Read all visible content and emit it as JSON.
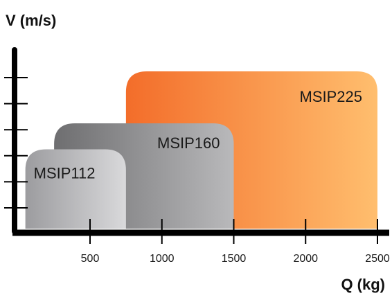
{
  "chart_data": {
    "type": "area",
    "xlabel": "Q (kg)",
    "ylabel": "V (m/s)",
    "x_ticks": [
      500,
      1000,
      1500,
      2000,
      2500
    ],
    "x_tick_labels": [
      "500",
      "1000",
      "1500",
      "2000",
      "2500"
    ],
    "y_tick_count": 6,
    "y_tick_labels": [],
    "grid": false,
    "legend": "none",
    "series": [
      {
        "name": "MSIP225",
        "x_range": [
          750,
          2500
        ],
        "y_level": 6,
        "gradient": [
          "#f36d2a",
          "#ffbe6e"
        ]
      },
      {
        "name": "MSIP160",
        "x_range": [
          250,
          1500
        ],
        "y_level": 4,
        "gradient": [
          "#6e6e70",
          "#b9b9bb"
        ]
      },
      {
        "name": "MSIP112",
        "x_range": [
          50,
          750
        ],
        "y_level": 3,
        "gradient": [
          "#9c9c9f",
          "#d9d9db"
        ]
      }
    ],
    "axis_color": "#000000"
  }
}
